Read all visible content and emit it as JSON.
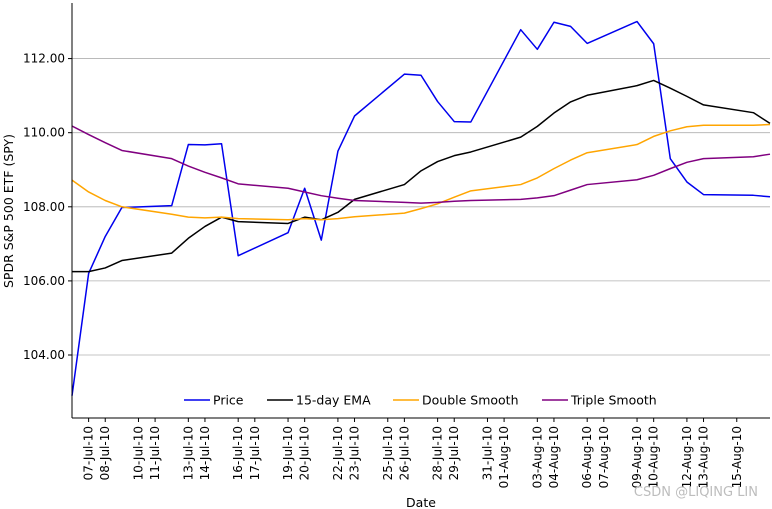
{
  "chart_data": {
    "type": "line",
    "xlabel": "Date",
    "ylabel": "SPDR S&P 500 ETF (SPY)",
    "ylim": [
      102.3,
      113.5
    ],
    "yticks": [
      104.0,
      106.0,
      108.0,
      110.0,
      112.0
    ],
    "ytick_labels": [
      "104.00",
      "106.00",
      "108.00",
      "110.00",
      "112.00"
    ],
    "grid": "horizontal",
    "legend_position": "bottom-center",
    "x_dates": [
      "2010-07-06",
      "2010-07-07",
      "2010-07-08",
      "2010-07-09",
      "2010-07-12",
      "2010-07-13",
      "2010-07-14",
      "2010-07-15",
      "2010-07-16",
      "2010-07-19",
      "2010-07-20",
      "2010-07-21",
      "2010-07-22",
      "2010-07-23",
      "2010-07-26",
      "2010-07-27",
      "2010-07-28",
      "2010-07-29",
      "2010-07-30",
      "2010-08-02",
      "2010-08-03",
      "2010-08-04",
      "2010-08-05",
      "2010-08-06",
      "2010-08-09",
      "2010-08-10",
      "2010-08-11",
      "2010-08-12",
      "2010-08-13",
      "2010-08-16",
      "2010-08-17"
    ],
    "xtick_dates": [
      "2010-07-07",
      "2010-07-08",
      "2010-07-10",
      "2010-07-11",
      "2010-07-13",
      "2010-07-14",
      "2010-07-16",
      "2010-07-17",
      "2010-07-19",
      "2010-07-20",
      "2010-07-22",
      "2010-07-23",
      "2010-07-25",
      "2010-07-26",
      "2010-07-28",
      "2010-07-29",
      "2010-07-31",
      "2010-08-01",
      "2010-08-03",
      "2010-08-04",
      "2010-08-06",
      "2010-08-07",
      "2010-08-09",
      "2010-08-10",
      "2010-08-12",
      "2010-08-13",
      "2010-08-15"
    ],
    "xtick_labels": [
      "07-Jul-10",
      "08-Jul-10",
      "10-Jul-10",
      "11-Jul-10",
      "13-Jul-10",
      "14-Jul-10",
      "16-Jul-10",
      "17-Jul-10",
      "19-Jul-10",
      "20-Jul-10",
      "22-Jul-10",
      "23-Jul-10",
      "25-Jul-10",
      "26-Jul-10",
      "28-Jul-10",
      "29-Jul-10",
      "31-Jul-10",
      "01-Aug-10",
      "03-Aug-10",
      "04-Aug-10",
      "06-Aug-10",
      "07-Aug-10",
      "09-Aug-10",
      "10-Aug-10",
      "12-Aug-10",
      "13-Aug-10",
      "15-Aug-10"
    ],
    "series": [
      {
        "name": "Price",
        "color": "#0000ee",
        "values": [
          102.9,
          106.2,
          107.2,
          107.98,
          108.03,
          109.68,
          109.67,
          109.7,
          106.68,
          107.3,
          108.5,
          107.1,
          109.5,
          110.45,
          111.58,
          111.55,
          110.84,
          110.3,
          110.29,
          112.78,
          112.25,
          112.98,
          112.87,
          112.41,
          113.0,
          112.4,
          109.3,
          108.67,
          108.33,
          108.31,
          108.27
        ]
      },
      {
        "name": "15-day EMA",
        "color": "#000000",
        "values": [
          106.25,
          106.25,
          106.35,
          106.55,
          106.75,
          107.15,
          107.47,
          107.72,
          107.6,
          107.55,
          107.72,
          107.65,
          107.85,
          108.2,
          108.6,
          108.97,
          109.22,
          109.38,
          109.48,
          109.88,
          110.17,
          110.53,
          110.83,
          111.01,
          111.27,
          111.41,
          111.2,
          110.98,
          110.75,
          110.54,
          110.25
        ]
      },
      {
        "name": "Double Smooth",
        "color": "#ffa500",
        "values": [
          108.72,
          108.4,
          108.17,
          108.0,
          107.8,
          107.72,
          107.7,
          107.72,
          107.68,
          107.65,
          107.68,
          107.65,
          107.68,
          107.73,
          107.83,
          107.95,
          108.08,
          108.26,
          108.43,
          108.6,
          108.78,
          109.03,
          109.26,
          109.46,
          109.68,
          109.9,
          110.05,
          110.16,
          110.2,
          110.2,
          110.22
        ]
      },
      {
        "name": "Triple Smooth",
        "color": "#800080",
        "values": [
          110.18,
          109.95,
          109.73,
          109.52,
          109.3,
          109.1,
          108.93,
          108.78,
          108.62,
          108.5,
          108.4,
          108.3,
          108.23,
          108.17,
          108.12,
          108.1,
          108.12,
          108.15,
          108.17,
          108.2,
          108.24,
          108.3,
          108.45,
          108.6,
          108.73,
          108.85,
          109.03,
          109.2,
          109.3,
          109.35,
          109.42
        ]
      }
    ]
  },
  "watermark": "CSDN @LIQING LIN"
}
